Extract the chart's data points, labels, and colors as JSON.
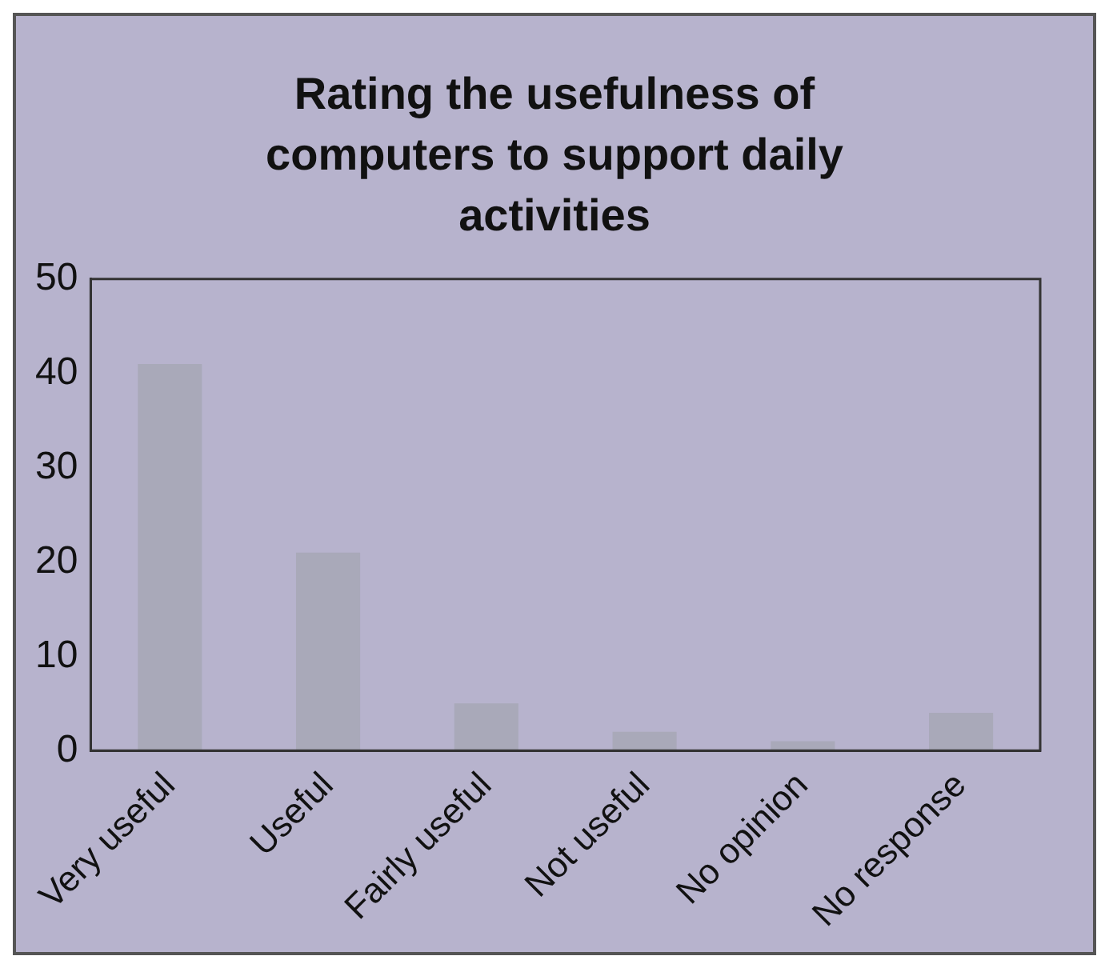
{
  "chart_data": {
    "type": "bar",
    "title": "Rating the usefulness of computers to support daily activities",
    "categories": [
      "Very useful",
      "Useful",
      "Fairly useful",
      "Not useful",
      "No opinion",
      "No response"
    ],
    "values": [
      41,
      21,
      5,
      2,
      1,
      4
    ],
    "color": "#a9a9b9",
    "ylim": [
      0,
      50
    ],
    "yticks": [
      0,
      10,
      20,
      30,
      40,
      50
    ],
    "grid": false,
    "legend": false
  }
}
